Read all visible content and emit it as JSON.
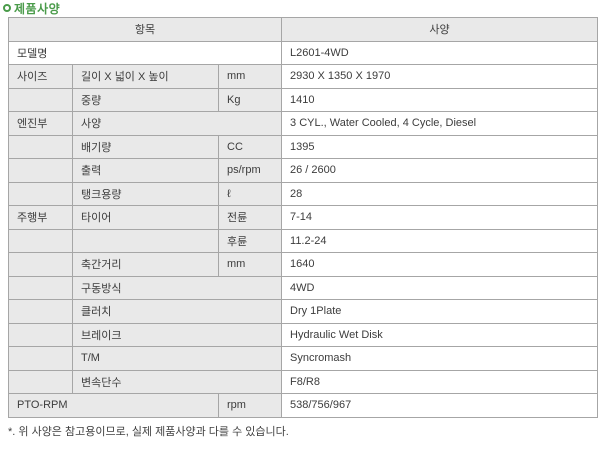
{
  "title": "제품사양",
  "accent_color": "#4a9b4a",
  "header_bg_color": "#e9e9e9",
  "border_color": "#a6a6a6",
  "table": {
    "headers": [
      {
        "label": "항목",
        "colspan": 3
      },
      {
        "label": "사양",
        "colspan": 1
      }
    ],
    "rows": [
      {
        "cells": [
          {
            "role": "category",
            "text": "모델명",
            "colspan": 3,
            "shade": false
          },
          {
            "role": "value",
            "text": "L2601-4WD"
          }
        ]
      },
      {
        "cells": [
          {
            "role": "category",
            "text": "사이즈"
          },
          {
            "role": "item",
            "text": "길이 X 넓이 X 높이"
          },
          {
            "role": "unit",
            "text": "mm"
          },
          {
            "role": "value",
            "text": "2930 X 1350 X 1970"
          }
        ]
      },
      {
        "cells": [
          {
            "role": "category",
            "text": ""
          },
          {
            "role": "item",
            "text": "중량"
          },
          {
            "role": "unit",
            "text": "Kg"
          },
          {
            "role": "value",
            "text": "1410"
          }
        ]
      },
      {
        "cells": [
          {
            "role": "category",
            "text": "엔진부"
          },
          {
            "role": "item",
            "text": "사양",
            "colspan": 2
          },
          {
            "role": "value",
            "text": "3 CYL., Water Cooled, 4 Cycle, Diesel"
          }
        ]
      },
      {
        "cells": [
          {
            "role": "category",
            "text": ""
          },
          {
            "role": "item",
            "text": "배기량"
          },
          {
            "role": "unit",
            "text": "CC"
          },
          {
            "role": "value",
            "text": "1395"
          }
        ]
      },
      {
        "cells": [
          {
            "role": "category",
            "text": ""
          },
          {
            "role": "item",
            "text": "출력"
          },
          {
            "role": "unit",
            "text": "ps/rpm"
          },
          {
            "role": "value",
            "text": "26 / 2600"
          }
        ]
      },
      {
        "cells": [
          {
            "role": "category",
            "text": ""
          },
          {
            "role": "item",
            "text": "탱크용량"
          },
          {
            "role": "unit",
            "text": "ℓ"
          },
          {
            "role": "value",
            "text": "28"
          }
        ]
      },
      {
        "cells": [
          {
            "role": "category",
            "text": "주행부"
          },
          {
            "role": "item",
            "text": "타이어"
          },
          {
            "role": "unit",
            "text": "전륜"
          },
          {
            "role": "value",
            "text": "7-14"
          }
        ]
      },
      {
        "cells": [
          {
            "role": "category",
            "text": ""
          },
          {
            "role": "item",
            "text": ""
          },
          {
            "role": "unit",
            "text": "후륜"
          },
          {
            "role": "value",
            "text": "11.2-24"
          }
        ]
      },
      {
        "cells": [
          {
            "role": "category",
            "text": ""
          },
          {
            "role": "item",
            "text": "축간거리"
          },
          {
            "role": "unit",
            "text": "mm"
          },
          {
            "role": "value",
            "text": "1640"
          }
        ]
      },
      {
        "cells": [
          {
            "role": "category",
            "text": ""
          },
          {
            "role": "item",
            "text": "구동방식",
            "colspan": 2
          },
          {
            "role": "value",
            "text": "4WD"
          }
        ]
      },
      {
        "cells": [
          {
            "role": "category",
            "text": ""
          },
          {
            "role": "item",
            "text": "클러치",
            "colspan": 2
          },
          {
            "role": "value",
            "text": "Dry 1Plate"
          }
        ]
      },
      {
        "cells": [
          {
            "role": "category",
            "text": ""
          },
          {
            "role": "item",
            "text": "브레이크",
            "colspan": 2
          },
          {
            "role": "value",
            "text": "Hydraulic Wet Disk"
          }
        ]
      },
      {
        "cells": [
          {
            "role": "category",
            "text": ""
          },
          {
            "role": "item",
            "text": "T/M",
            "colspan": 2
          },
          {
            "role": "value",
            "text": "Syncromash"
          }
        ]
      },
      {
        "cells": [
          {
            "role": "category",
            "text": ""
          },
          {
            "role": "item",
            "text": "변속단수",
            "colspan": 2
          },
          {
            "role": "value",
            "text": "F8/R8"
          }
        ]
      },
      {
        "cells": [
          {
            "role": "category",
            "text": "PTO-RPM",
            "colspan": 2
          },
          {
            "role": "unit",
            "text": "rpm"
          },
          {
            "role": "value",
            "text": "538/756/967"
          }
        ]
      }
    ]
  },
  "footnote": "*. 위 사양은 참고용이므로, 실제 제품사양과 다를 수 있습니다."
}
